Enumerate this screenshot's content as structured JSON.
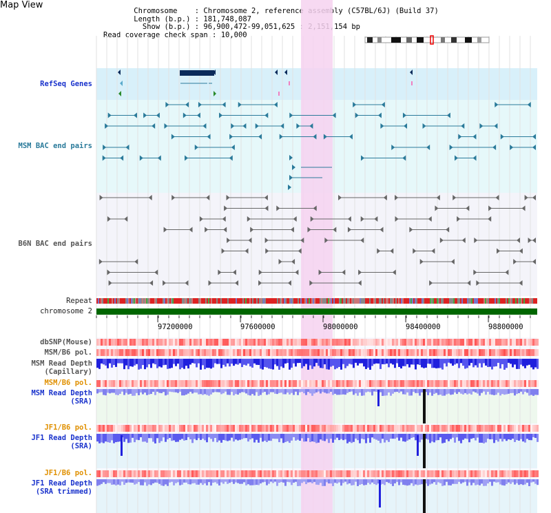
{
  "title": "Map View",
  "info": {
    "chromosome_key": "Chromosome",
    "chromosome_value": "Chromosome 2, reference assembly (C57BL/6J) (Build 37)",
    "length_key": "Length (b.p.)",
    "length_value": "181,748,087",
    "show_key": "Show (b.p.)",
    "show_value": "96,900,472-99,051,625 : 2,151,154 bp",
    "span_key": "Read coverage check span",
    "span_value": "10,000"
  },
  "tracks": {
    "refseq": "RefSeq Genes",
    "msm_bac": "MSM BAC end pairs",
    "b6n_bac": "B6N BAC end pairs",
    "repeat": "Repeat",
    "chromosome": "chromosome 2",
    "dbsnp": "dbSNP(Mouse)",
    "msm_b6_pol": "MSM/B6 pol.",
    "msm_depth_cap_1": "MSM Read Depth",
    "msm_depth_cap_2": "(Capillary)",
    "msm_b6_pol_sra": "MSM/B6 pol.",
    "msm_depth_sra_1": "MSM Read Depth",
    "msm_depth_sra_2": "(SRA)",
    "jf1_b6_pol": "JF1/B6 pol.",
    "jf1_depth_sra_1": "JF1 Read Depth",
    "jf1_depth_sra_2": "(SRA)",
    "jf1_b6_pol_trim": "JF1/B6 pol.",
    "jf1_depth_trim_1": "JF1 Read Depth",
    "jf1_depth_trim_2": "(SRA trimmed)"
  },
  "axis_ticks": [
    "97200000",
    "97600000",
    "98000000",
    "98400000",
    "98800000"
  ],
  "colors": {
    "highlight": "#f6d2f0",
    "refseq_bg": "#d8f0fa",
    "bac_bg": "#e6f8fa",
    "b6n_bg": "#f4f4fa",
    "chromosome_bar": "#006600",
    "depth_blue": "#2a2aee",
    "pol_red": "#ee3333"
  }
}
